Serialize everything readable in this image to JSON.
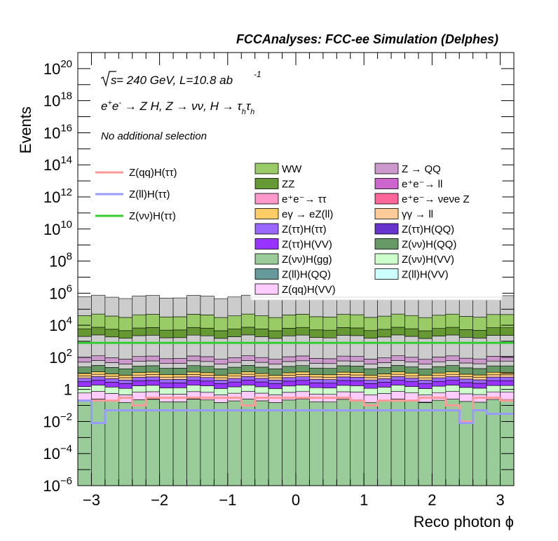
{
  "chart_data": {
    "type": "histogram-stacked",
    "title": "FCCAnalyses: FCC-ee Simulation (Delphes)",
    "xlabel": "Reco photon ϕ",
    "ylabel": "Events",
    "xlim": [
      -3.2,
      3.2
    ],
    "ylim": [
      1e-06,
      1e+21
    ],
    "yscale": "log",
    "xticks": [
      "−3",
      "−2",
      "−1",
      "0",
      "1",
      "2",
      "3"
    ],
    "xtick_values": [
      -3,
      -2,
      -1,
      0,
      1,
      2,
      3
    ],
    "yticks": [
      "10^-6",
      "10^-4",
      "10^-2",
      "1",
      "10^2",
      "10^4",
      "10^6",
      "10^8",
      "10^10",
      "10^12",
      "10^14",
      "10^16",
      "10^18",
      "10^20"
    ],
    "ytick_values": [
      1e-06,
      0.0001,
      0.01,
      1,
      100.0,
      10000.0,
      1000000.0,
      100000000.0,
      10000000000.0,
      1000000000000.0,
      100000000000000.0,
      1e+16,
      1e+18,
      1e+20
    ],
    "annotations": {
      "energy_base": "s",
      "energy_text": " = 240 GeV, L=10.8 ab",
      "energy_exp": "-1",
      "process": "e⁺e⁻ → Z H, Z → νν, H → τhτh",
      "process_parts": [
        "e",
        "+",
        "e",
        "-",
        " → Z H, Z  → νν, H → τ",
        "h",
        "τ",
        "h"
      ],
      "selection": "No additional selection"
    },
    "nbins": 32,
    "stack_order_bottom_to_top": [
      "Z(νν)H(gg)",
      "Z(ll)H(QQ)",
      "Z(ll)H(VV)",
      "Z(ττ)H(QQ)",
      "Z(qq)H(VV)",
      "Z(νν)H(VV)",
      "Z(ττ)H(VV)",
      "Z(ττ)H(ττ)",
      "γγ → ll",
      "eγ → eZ(ll)",
      "Z(νν)H(QQ)",
      "e⁺e⁻ → ll",
      "Z → QQ",
      "e⁺e⁻ → νeνe Z",
      "ZZ",
      "WW",
      "e⁺e⁻ → ττ"
    ],
    "backgrounds": [
      {
        "name": "WW",
        "color": "#99cc66"
      },
      {
        "name": "Z → QQ",
        "color": "#cc99cc"
      },
      {
        "name": "ZZ",
        "color": "#669933"
      },
      {
        "name": "e⁺e⁻→ ll",
        "color": "#cc66cc"
      },
      {
        "name": "e⁺e⁻→ ττ",
        "color": "#ff99cc"
      },
      {
        "name": "e⁺e⁻→ νeνe Z",
        "color": "#ff6699"
      },
      {
        "name": "eγ → eZ(ll)",
        "color": "#ffcc66"
      },
      {
        "name": "γγ → ll",
        "color": "#ffcc99"
      },
      {
        "name": "Z(ττ)H(ττ)",
        "color": "#9966ff"
      },
      {
        "name": "Z(ττ)H(QQ)",
        "color": "#6633cc"
      },
      {
        "name": "Z(ττ)H(VV)",
        "color": "#9933ff"
      },
      {
        "name": "Z(νν)H(QQ)",
        "color": "#669966"
      },
      {
        "name": "Z(νν)H(gg)",
        "color": "#99cc99"
      },
      {
        "name": "Z(νν)H(VV)",
        "color": "#ccffcc"
      },
      {
        "name": "Z(ll)H(QQ)",
        "color": "#669999"
      },
      {
        "name": "Z(ll)H(VV)",
        "color": "#ccffff"
      },
      {
        "name": "Z(qq)H(VV)",
        "color": "#ffccff"
      }
    ],
    "stack_levels_approx": {
      "Z(νν)H(gg)": 0.2,
      "Z(qq)H(VV)": 0.6,
      "Z(νν)H(VV)": 1.5,
      "Z(ττ)H(VV)": 3,
      "Z(ττ)H(ττ)": 5,
      "γγ → ll": 7,
      "eγ → eZ(ll)": 10,
      "Z(νν)H(QQ)": 25,
      "e⁺e⁻ → ll": 50,
      "Z → QQ": 100,
      "e⁺e⁻ → νeνe Z": 2000,
      "ZZ": 6000,
      "WW": 40000,
      "e⁺e⁻ → ττ": 600000
    },
    "sparse_components": {
      "Z(ll)H(VV)": [
        0.01,
        1e-06,
        1e-06,
        1e-06,
        1e-06,
        1e-06,
        1e-06,
        0.001,
        1e-06,
        1e-06,
        1e-06,
        1e-06,
        1e-06,
        1e-06,
        1e-06,
        1e-06,
        0.0001,
        1e-06,
        1e-06,
        0.001,
        1e-06,
        1e-06,
        1e-06,
        1e-06,
        1e-06,
        1e-06,
        1e-06,
        1e-06,
        1e-06,
        1e-06,
        1e-06,
        1e-06
      ],
      "Z(ττ)H(QQ)": [
        1e-06,
        1e-06,
        1e-06,
        1e-06,
        1e-06,
        0.01,
        5e-05,
        1e-06,
        0.01,
        1e-06,
        1e-06,
        1e-06,
        1e-06,
        5e-05,
        1e-06,
        1e-06,
        1e-06,
        1e-06,
        1e-06,
        1e-06,
        1e-06,
        1e-06,
        1e-06,
        1e-06,
        5e-05,
        0.01,
        1e-06,
        1e-06,
        1e-06,
        0.0001,
        1e-06,
        1e-06
      ],
      "Z(ll)H(QQ)": [
        1e-06,
        1e-06,
        1e-06,
        1e-06,
        1e-06,
        1e-06,
        1e-06,
        1e-06,
        1e-06,
        1e-06,
        1e-06,
        1e-06,
        1e-06,
        1e-06,
        1e-06,
        1e-06,
        5e-05,
        1e-06,
        1e-06,
        1e-06,
        1e-06,
        1e-06,
        1e-06,
        1e-06,
        1e-06,
        1e-06,
        1e-06,
        1e-06,
        1e-06,
        5e-05,
        5e-05,
        1e-06
      ]
    },
    "signals": [
      {
        "name": "Z(qq)H(ττ)",
        "color": "#ff9999",
        "values": [
          0.2,
          0.2,
          0.2,
          0.3,
          0.1,
          0.3,
          0.3,
          0.3,
          0.3,
          0.3,
          0.3,
          0.3,
          0.1,
          0.3,
          0.3,
          0.3,
          0.3,
          0.3,
          0.3,
          0.3,
          0.2,
          0.1,
          0.2,
          0.2,
          0.2,
          0.3,
          0.3,
          0.1,
          0.01,
          0.3,
          0.3,
          0.2
        ]
      },
      {
        "name": "Z(ll)H(ττ)",
        "color": "#9999ff",
        "values": [
          0.2,
          0.008,
          0.05,
          0.05,
          0.05,
          0.05,
          0.05,
          0.05,
          0.05,
          0.05,
          0.05,
          0.05,
          0.05,
          0.05,
          0.05,
          0.05,
          0.05,
          0.05,
          0.05,
          0.05,
          0.05,
          0.05,
          0.05,
          0.05,
          0.05,
          0.05,
          0.05,
          0.05,
          0.008,
          0.05,
          0.03,
          0.03
        ]
      },
      {
        "name": "Z(νν)H(ττ)",
        "color": "#33cc33",
        "values": [
          800,
          800,
          800,
          800,
          800,
          800,
          800,
          800,
          800,
          800,
          800,
          800,
          800,
          800,
          800,
          800,
          800,
          800,
          800,
          800,
          800,
          800,
          800,
          800,
          800,
          800,
          800,
          800,
          800,
          800,
          800,
          800
        ]
      }
    ],
    "legend_placement": "top-right and middle-left",
    "grid": false
  }
}
